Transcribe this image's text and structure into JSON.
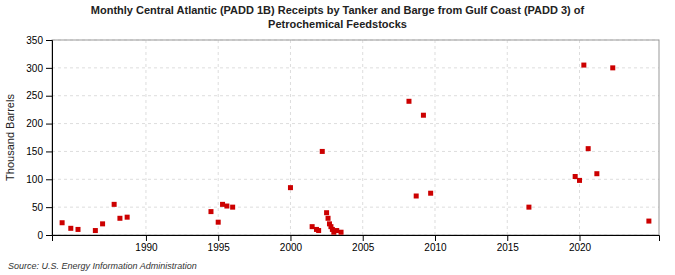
{
  "chart_data": {
    "type": "scatter",
    "title": "Monthly Central Atlantic (PADD 1B) Receipts by Tanker and Barge from Gulf Coast (PADD 3) of\nPetrochemical Feedstocks",
    "ylabel": "Thousand Barrels",
    "source": "Source: U.S. Energy Information Administration",
    "color": "#cc0000",
    "marker": "square",
    "grid": true,
    "xlim": [
      1983.5,
      2025.5
    ],
    "ylim": [
      0,
      350
    ],
    "xticks": [
      1990,
      1995,
      2000,
      2005,
      2010,
      2015,
      2020
    ],
    "yticks": [
      0,
      50,
      100,
      150,
      200,
      250,
      300,
      350
    ],
    "x": [
      1984.2,
      1984.8,
      1985.3,
      1986.5,
      1987.0,
      1987.8,
      1988.2,
      1988.7,
      1994.5,
      1995.0,
      1995.3,
      1995.6,
      1996.0,
      2000.0,
      2001.5,
      2001.8,
      2001.95,
      2002.2,
      2002.5,
      2002.6,
      2002.7,
      2002.8,
      2002.9,
      2003.0,
      2003.2,
      2003.5,
      2008.2,
      2008.7,
      2009.2,
      2009.7,
      2016.5,
      2019.7,
      2020.0,
      2020.3,
      2020.6,
      2021.2,
      2022.3,
      2024.8
    ],
    "values": [
      22,
      12,
      10,
      8,
      20,
      55,
      30,
      32,
      42,
      23,
      55,
      52,
      50,
      85,
      15,
      10,
      8,
      150,
      40,
      30,
      20,
      15,
      10,
      5,
      8,
      5,
      240,
      70,
      215,
      75,
      50,
      105,
      98,
      305,
      155,
      110,
      300,
      25
    ]
  }
}
